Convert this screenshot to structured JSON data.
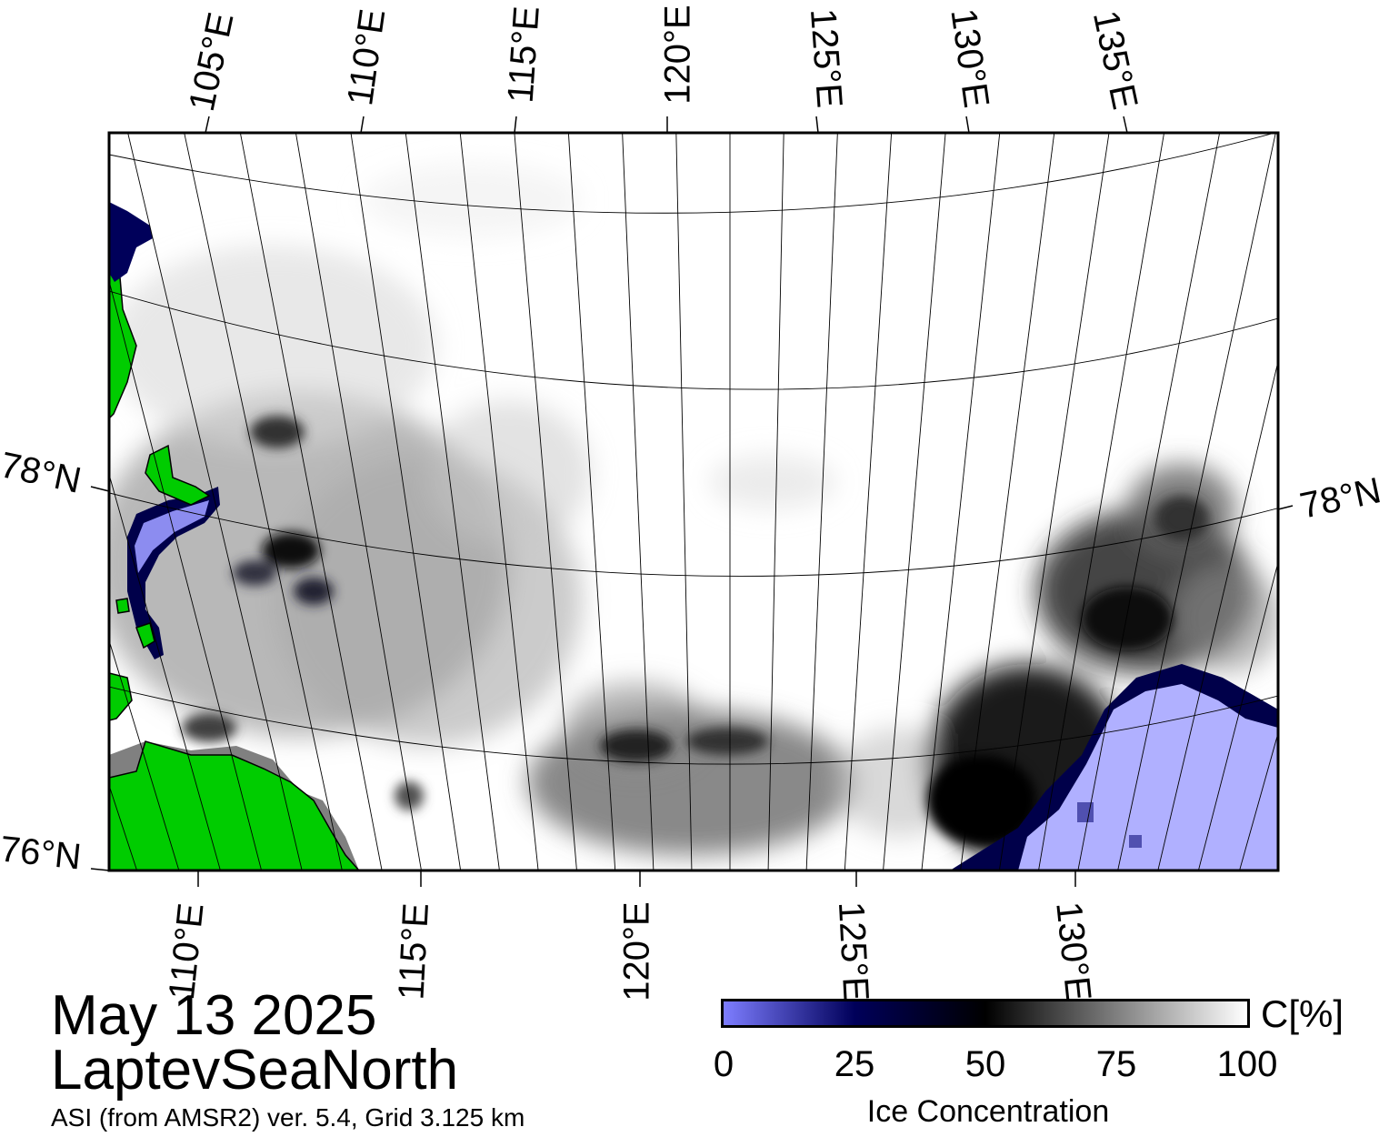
{
  "map": {
    "top_longitude_labels": [
      "105°E",
      "110°E",
      "115°E",
      "120°E",
      "125°E",
      "130°E",
      "135°E"
    ],
    "bottom_longitude_labels": [
      "110°E",
      "115°E",
      "120°E",
      "125°E",
      "130°E"
    ],
    "latitude_labels": {
      "left_upper": "78°N",
      "left_lower": "76°N",
      "right_upper": "78°N"
    },
    "colors": {
      "land": "#00cc00",
      "open_water": "#b0b0ff",
      "ice_dark": "#000000",
      "coast_mask": "#808080"
    }
  },
  "annotation": {
    "date": "May 13 2025",
    "region": "LaptevSeaNorth",
    "source": "ASI (from AMSR2) ver. 5.4,  Grid 3.125 km"
  },
  "colorbar": {
    "unit": "C[%]",
    "ticks": [
      "0",
      "25",
      "50",
      "75",
      "100"
    ],
    "title": "Ice Concentration",
    "range": [
      0,
      100
    ]
  }
}
